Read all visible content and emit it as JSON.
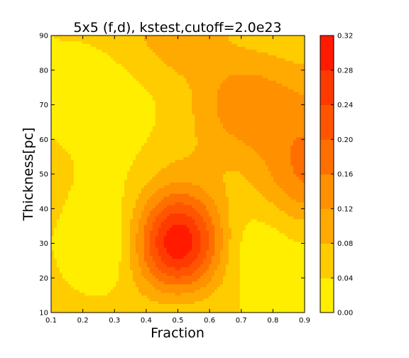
{
  "chart_data": {
    "type": "heatmap",
    "style": "filled-contour",
    "title": "5x5 (f,d), kstest,cutoff=2.0e23",
    "xlabel": "Fraction",
    "ylabel": "Thickness[pc]",
    "xlim": [
      0.1,
      0.9
    ],
    "ylim": [
      10,
      90
    ],
    "x": [
      0.1,
      0.3,
      0.5,
      0.7,
      0.9
    ],
    "y": [
      10,
      30,
      50,
      70,
      90
    ],
    "z": [
      [
        0.05,
        0.05,
        0.06,
        0.04,
        0.02
      ],
      [
        0.04,
        0.02,
        0.31,
        0.04,
        0.04
      ],
      [
        0.05,
        0.03,
        0.1,
        0.08,
        0.17
      ],
      [
        0.03,
        0.02,
        0.06,
        0.15,
        0.13
      ],
      [
        0.04,
        0.05,
        0.11,
        0.07,
        0.05
      ]
    ],
    "levels": [
      0.0,
      0.04,
      0.08,
      0.12,
      0.16,
      0.2,
      0.24,
      0.28,
      0.32
    ],
    "x_ticks": [
      "0.1",
      "0.2",
      "0.3",
      "0.4",
      "0.5",
      "0.6",
      "0.7",
      "0.8",
      "0.9"
    ],
    "y_ticks": [
      "10",
      "20",
      "30",
      "40",
      "50",
      "60",
      "70",
      "80",
      "90"
    ],
    "colorbar_ticks": [
      "0.00",
      "0.04",
      "0.08",
      "0.12",
      "0.16",
      "0.20",
      "0.24",
      "0.28",
      "0.32"
    ],
    "colors": [
      "#ffee00",
      "#ffcc00",
      "#ffaa00",
      "#ff9000",
      "#ff6f00",
      "#ff5500",
      "#ff3a00",
      "#ff1a00"
    ],
    "colormap": "autumn_r",
    "grid": false,
    "colorbar": "right"
  }
}
